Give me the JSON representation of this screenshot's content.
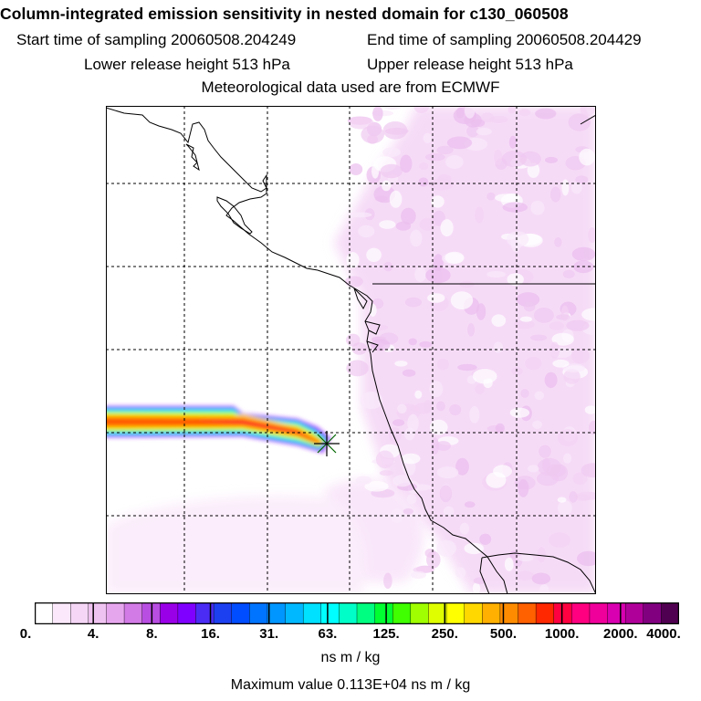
{
  "header": {
    "title": "Column-integrated emission sensitivity in nested domain for c130_060508",
    "start_label": "Start time of sampling 20060508.204249",
    "end_label": "End time of sampling 20060508.204429",
    "lower_label": "Lower release height  513 hPa",
    "upper_label": "Upper release height  513 hPa",
    "met_label": "Meteorological data used are from ECMWF"
  },
  "colorbar": {
    "tick_labels": [
      "0.",
      "4.",
      "8.",
      "16.",
      "31.",
      "63.",
      "125.",
      "250.",
      "500.",
      "1000.",
      "2000.",
      "4000."
    ],
    "colors": [
      "#ffffff",
      "#fbe9fb",
      "#f5d6f6",
      "#efc3f1",
      "#e6a6ee",
      "#d27ae6",
      "#b84ee2",
      "#9a00e8",
      "#8000ff",
      "#4a2cf5",
      "#1c40f0",
      "#004cff",
      "#0074ff",
      "#0096ff",
      "#00b8ff",
      "#00e0ff",
      "#00ffff",
      "#00ffc8",
      "#00ff80",
      "#00ff30",
      "#40ff00",
      "#a0ff00",
      "#dfff00",
      "#ffff00",
      "#ffd800",
      "#ffb000",
      "#ff8c00",
      "#ff6000",
      "#ff2800",
      "#ff0040",
      "#ff0080",
      "#f0009a",
      "#d800b0",
      "#b0009a",
      "#800080",
      "#500050"
    ],
    "units": "ns m / kg",
    "max_value_label": "Maximum value  0.113E+04 ns m / kg"
  },
  "map": {
    "release_marker_icon": "asterisk-release-site-icon",
    "plume_colors": [
      "#ff3300",
      "#ff8800",
      "#ffcc00",
      "#e8ff00",
      "#80ff00",
      "#00ffff",
      "#0080ff",
      "#9900ff",
      "#ff00ff"
    ]
  }
}
